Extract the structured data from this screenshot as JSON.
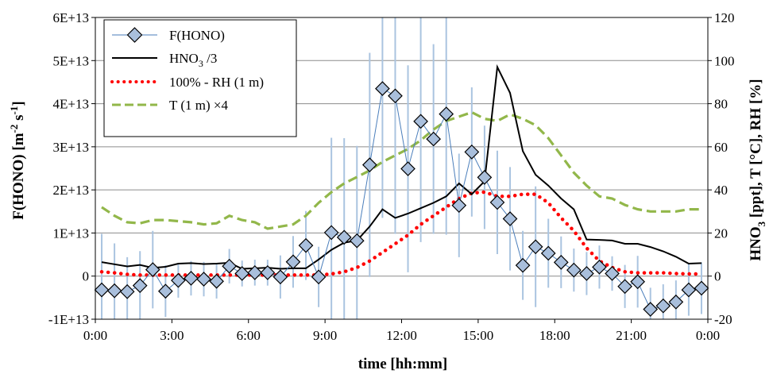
{
  "chart_data": {
    "type": "line",
    "title": "",
    "xlabel": "time [hh:mm]",
    "ylabel_left": "F(HONO) [m-2 s-1]",
    "ylabel_left_parts": [
      "F(HONO) [m",
      "-2",
      " s",
      "-1",
      "]"
    ],
    "ylabel_right": "HNO3 [ppt], T [°C], RH [%]",
    "ylabel_right_parts": [
      "HNO",
      "3",
      " [ppt], T [°C], RH [%]"
    ],
    "xlim_hours": [
      0,
      24
    ],
    "x_ticks": [
      {
        "h": 0,
        "label": "0:00"
      },
      {
        "h": 3,
        "label": "3:00"
      },
      {
        "h": 6,
        "label": "6:00"
      },
      {
        "h": 9,
        "label": "9:00"
      },
      {
        "h": 12,
        "label": "12:00"
      },
      {
        "h": 15,
        "label": "15:00"
      },
      {
        "h": 18,
        "label": "18:00"
      },
      {
        "h": 21,
        "label": "21:00"
      },
      {
        "h": 24,
        "label": "0:00"
      }
    ],
    "ylim_left": [
      -10000000000000.0,
      60000000000000.0
    ],
    "y_left_ticks": [
      {
        "v": -10000000000000.0,
        "label": "-1E+13"
      },
      {
        "v": 0,
        "label": "0"
      },
      {
        "v": 10000000000000.0,
        "label": "1E+13"
      },
      {
        "v": 20000000000000.0,
        "label": "2E+13"
      },
      {
        "v": 30000000000000.0,
        "label": "3E+13"
      },
      {
        "v": 40000000000000.0,
        "label": "4E+13"
      },
      {
        "v": 50000000000000.0,
        "label": "5E+13"
      },
      {
        "v": 60000000000000.0,
        "label": "6E+13"
      }
    ],
    "ylim_right": [
      -20,
      120
    ],
    "y_right_ticks": [
      {
        "v": -20,
        "label": "-20"
      },
      {
        "v": 0,
        "label": "0"
      },
      {
        "v": 20,
        "label": "20"
      },
      {
        "v": 40,
        "label": "40"
      },
      {
        "v": 60,
        "label": "60"
      },
      {
        "v": 80,
        "label": "80"
      },
      {
        "v": 100,
        "label": "100"
      },
      {
        "v": 120,
        "label": "120"
      }
    ],
    "grid": "horizontal",
    "legend_position": "top-left",
    "series": [
      {
        "key": "fhono",
        "name": "F(HONO)",
        "axis": "left",
        "color": "#4a7ebb",
        "marker_fill": "#a9bfdc",
        "x_hours": [
          0.25,
          0.75,
          1.25,
          1.75,
          2.25,
          2.75,
          3.25,
          3.75,
          4.25,
          4.75,
          5.25,
          5.75,
          6.25,
          6.75,
          7.25,
          7.75,
          8.25,
          8.75,
          9.25,
          9.75,
          10.25,
          10.75,
          11.25,
          11.75,
          12.25,
          12.75,
          13.25,
          13.75,
          14.25,
          14.75,
          15.25,
          15.75,
          16.25,
          16.75,
          17.25,
          17.75,
          18.25,
          18.75,
          19.25,
          19.75,
          20.25,
          20.75,
          21.25,
          21.75,
          22.25,
          22.75,
          23.25,
          23.75
        ],
        "values": [
          -3200000000000.0,
          -3400000000000.0,
          -3600000000000.0,
          -2200000000000.0,
          1500000000000.0,
          -3500000000000.0,
          -1000000000000.0,
          -500000000000.0,
          -700000000000.0,
          -1200000000000.0,
          2300000000000.0,
          600000000000.0,
          800000000000.0,
          800000000000.0,
          -200000000000.0,
          3300000000000.0,
          7100000000000.0,
          -200000000000.0,
          10100000000000.0,
          9000000000000.0,
          8200000000000.0,
          25800000000000.0,
          43500000000000.0,
          41800000000000.0,
          24900000000000.0,
          35900000000000.0,
          31800000000000.0,
          37600000000000.0,
          16400000000000.0,
          28800000000000.0,
          22900000000000.0,
          17100000000000.0,
          13300000000000.0,
          2500000000000.0,
          6800000000000.0,
          5300000000000.0,
          3200000000000.0,
          1400000000000.0,
          600000000000.0,
          2100000000000.0,
          600000000000.0,
          -2400000000000.0,
          -1300000000000.0,
          -7700000000000.0,
          -6900000000000.0,
          -6000000000000.0,
          -3200000000000.0,
          -2800000000000.0
        ],
        "error": [
          13000000000000.0,
          11000000000000.0,
          8000000000000.0,
          8000000000000.0,
          9000000000000.0,
          6000000000000.0,
          4000000000000.0,
          4000000000000.0,
          4000000000000.0,
          4000000000000.0,
          4000000000000.0,
          3000000000000.0,
          3000000000000.0,
          3000000000000.0,
          5000000000000.0,
          6000000000000.0,
          8000000000000.0,
          7000000000000.0,
          22000000000000.0,
          23000000000000.0,
          22000000000000.0,
          26000000000000.0,
          30000000000000.0,
          32000000000000.0,
          24000000000000.0,
          28000000000000.0,
          22000000000000.0,
          28000000000000.0,
          12000000000000.0,
          15000000000000.0,
          12000000000000.0,
          12000000000000.0,
          12000000000000.0,
          8000000000000.0,
          14000000000000.0,
          8000000000000.0,
          6000000000000.0,
          5000000000000.0,
          5000000000000.0,
          5000000000000.0,
          4000000000000.0,
          5000000000000.0,
          6000000000000.0,
          5000000000000.0,
          5000000000000.0,
          5000000000000.0,
          6000000000000.0,
          6000000000000.0
        ]
      },
      {
        "key": "hno3",
        "name": "HNO3 /3",
        "name_parts": [
          "HNO",
          "3",
          " /3"
        ],
        "axis": "right",
        "color": "#000000",
        "x_hours": [
          0.25,
          0.75,
          1.25,
          1.75,
          2.25,
          2.75,
          3.25,
          3.75,
          4.25,
          4.75,
          5.25,
          5.75,
          6.25,
          6.75,
          7.25,
          7.75,
          8.25,
          8.75,
          9.25,
          9.75,
          10.25,
          10.75,
          11.25,
          11.75,
          12.25,
          12.75,
          13.25,
          13.75,
          14.25,
          14.75,
          15.25,
          15.75,
          16.25,
          16.75,
          17.25,
          17.75,
          18.25,
          18.75,
          19.25,
          19.75,
          20.25,
          20.75,
          21.25,
          21.75,
          22.25,
          22.75,
          23.25,
          23.75
        ],
        "values": [
          6.5,
          5.5,
          4.5,
          5.2,
          3.8,
          4.3,
          5.8,
          6.0,
          5.6,
          5.8,
          6.2,
          3.4,
          3.6,
          3.9,
          3.4,
          3.6,
          3.6,
          7.7,
          12.2,
          15.5,
          16.5,
          23,
          31,
          27,
          29,
          31.5,
          34,
          37,
          43,
          38,
          44,
          97,
          85,
          58,
          47,
          42,
          36,
          31,
          17,
          16.8,
          16.5,
          15,
          15,
          13.5,
          11.5,
          9,
          5.8,
          6
        ]
      },
      {
        "key": "rh",
        "name": "100% - RH (1 m)",
        "axis": "right",
        "color": "#ff0000",
        "x_hours": [
          0.25,
          0.75,
          1.25,
          1.75,
          2.25,
          2.75,
          3.25,
          3.75,
          4.25,
          4.75,
          5.25,
          5.75,
          6.25,
          6.75,
          7.25,
          7.75,
          8.25,
          8.75,
          9.25,
          9.75,
          10.25,
          10.75,
          11.25,
          11.75,
          12.25,
          12.75,
          13.25,
          13.75,
          14.25,
          14.75,
          15.25,
          15.75,
          16.25,
          16.75,
          17.25,
          17.75,
          18.25,
          18.75,
          19.25,
          19.75,
          20.25,
          20.75,
          21.25,
          21.75,
          22.25,
          22.75,
          23.25,
          23.75
        ],
        "values": [
          2,
          1.5,
          0.8,
          0.5,
          0.5,
          0.5,
          0.5,
          0.5,
          0.5,
          0.5,
          0.5,
          0.5,
          0.5,
          0.5,
          0.5,
          0.5,
          0.5,
          0.5,
          1,
          2,
          4,
          7,
          11,
          15,
          19,
          24,
          28,
          32,
          36,
          38.5,
          39,
          37,
          37,
          38,
          38,
          34,
          27,
          21,
          13,
          7,
          4,
          2,
          1.5,
          1.5,
          1.5,
          1.2,
          1,
          1
        ]
      },
      {
        "key": "temp",
        "name": "T (1 m) ×4",
        "axis": "right",
        "color": "#92b74a",
        "x_hours": [
          0.25,
          0.75,
          1.25,
          1.75,
          2.25,
          2.75,
          3.25,
          3.75,
          4.25,
          4.75,
          5.25,
          5.75,
          6.25,
          6.75,
          7.25,
          7.75,
          8.25,
          8.75,
          9.25,
          9.75,
          10.25,
          10.75,
          11.25,
          11.75,
          12.25,
          12.75,
          13.25,
          13.75,
          14.25,
          14.75,
          15.25,
          15.75,
          16.25,
          16.75,
          17.25,
          17.75,
          18.25,
          18.75,
          19.25,
          19.75,
          20.25,
          20.75,
          21.25,
          21.75,
          22.25,
          22.75,
          23.25,
          23.75
        ],
        "values": [
          32,
          28,
          25,
          24.5,
          26,
          26,
          25.5,
          25,
          24,
          24.5,
          28,
          26,
          25,
          22,
          23,
          24,
          28,
          34,
          39,
          43,
          46,
          49,
          53,
          56,
          59,
          63,
          68,
          72,
          74,
          76,
          73,
          72,
          75,
          73,
          70,
          64,
          56,
          48,
          42,
          37,
          36,
          33,
          31,
          30,
          30,
          30,
          31,
          31
        ]
      }
    ]
  }
}
